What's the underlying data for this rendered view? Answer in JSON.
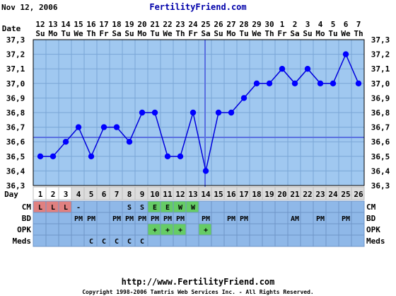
{
  "header": {
    "date": "Nov 12, 2006",
    "site": "FertilityFriend.com",
    "date_row_label": "Date",
    "day_row_label": "Day"
  },
  "chart_data": {
    "type": "line",
    "ylim": [
      36.3,
      37.3
    ],
    "y_ticks": [
      "37,3",
      "37,2",
      "37,1",
      "37,0",
      "36,9",
      "36,8",
      "36,7",
      "36,6",
      "36,5",
      "36,4",
      "36,3"
    ],
    "date_numbers": [
      "12",
      "13",
      "14",
      "15",
      "16",
      "17",
      "18",
      "19",
      "20",
      "21",
      "22",
      "23",
      "24",
      "25",
      "26",
      "27",
      "28",
      "29",
      "30",
      "1",
      "2",
      "3",
      "4",
      "5",
      "6",
      "7"
    ],
    "weekdays": [
      "Su",
      "Mo",
      "Tu",
      "We",
      "Th",
      "Fr",
      "Sa",
      "Su",
      "Mo",
      "Tu",
      "We",
      "Th",
      "Fr",
      "Sa",
      "Su",
      "Mo",
      "Tu",
      "We",
      "Th",
      "Fr",
      "Sa",
      "Su",
      "Mo",
      "Tu",
      "We",
      "Th"
    ],
    "days": [
      "1",
      "2",
      "3",
      "4",
      "5",
      "6",
      "7",
      "8",
      "9",
      "10",
      "11",
      "12",
      "13",
      "14",
      "15",
      "16",
      "17",
      "18",
      "19",
      "20",
      "21",
      "22",
      "23",
      "24",
      "25",
      "26"
    ],
    "temperatures": [
      36.5,
      36.5,
      36.6,
      36.7,
      36.5,
      36.7,
      36.7,
      36.6,
      36.8,
      36.8,
      36.5,
      36.5,
      36.8,
      36.4,
      36.8,
      36.8,
      36.9,
      37.0,
      37.0,
      37.1,
      37.0,
      37.1,
      37.0,
      37.0,
      37.2,
      37.0
    ],
    "coverline": 36.63,
    "ovulation_day": 14,
    "grid": true
  },
  "rows": {
    "cm": {
      "label": "CM",
      "cells": [
        "L",
        "L",
        "L",
        "-",
        "",
        "",
        "",
        "S",
        "S",
        "E",
        "E",
        "W",
        "W",
        "",
        "",
        "",
        "",
        "",
        "",
        "",
        "",
        "",
        "",
        "",
        "",
        ""
      ],
      "colors": {
        "L": "#e08080",
        "E": "#66cc66",
        "W": "#66cc66"
      }
    },
    "bd": {
      "label": "BD",
      "cells": [
        "",
        "",
        "",
        "PM",
        "PM",
        "",
        "PM",
        "PM",
        "PM",
        "PM",
        "PM",
        "PM",
        "",
        "PM",
        "",
        "PM",
        "PM",
        "",
        "",
        "",
        "AM",
        "",
        "PM",
        "",
        "PM",
        ""
      ]
    },
    "opk": {
      "label": "OPK",
      "cells": [
        "",
        "",
        "",
        "",
        "",
        "",
        "",
        "",
        "",
        "+",
        "+",
        "+",
        "",
        "+",
        "",
        "",
        "",
        "",
        "",
        "",
        "",
        "",
        "",
        "",
        "",
        ""
      ],
      "colors": {
        "+": "#66cc66"
      }
    },
    "meds": {
      "label": "Meds",
      "cells": [
        "",
        "",
        "",
        "",
        "C",
        "C",
        "C",
        "C",
        "C",
        "",
        "",
        "",
        "",
        "",
        "",
        "",
        "",
        "",
        "",
        "",
        "",
        "",
        "",
        "",
        "",
        ""
      ]
    }
  },
  "footer": {
    "url": "http://www.FertilityFriend.com",
    "copyright": "Copyright 1998-2006 Tamtris Web Services Inc. - All Rights Reserved."
  },
  "colors": {
    "plot_bg": "#a0c8f0",
    "grid": "#7aa6d6",
    "line": "#0000dd",
    "marker": "#0000ff",
    "cell_bg": "#8fb8e8"
  }
}
